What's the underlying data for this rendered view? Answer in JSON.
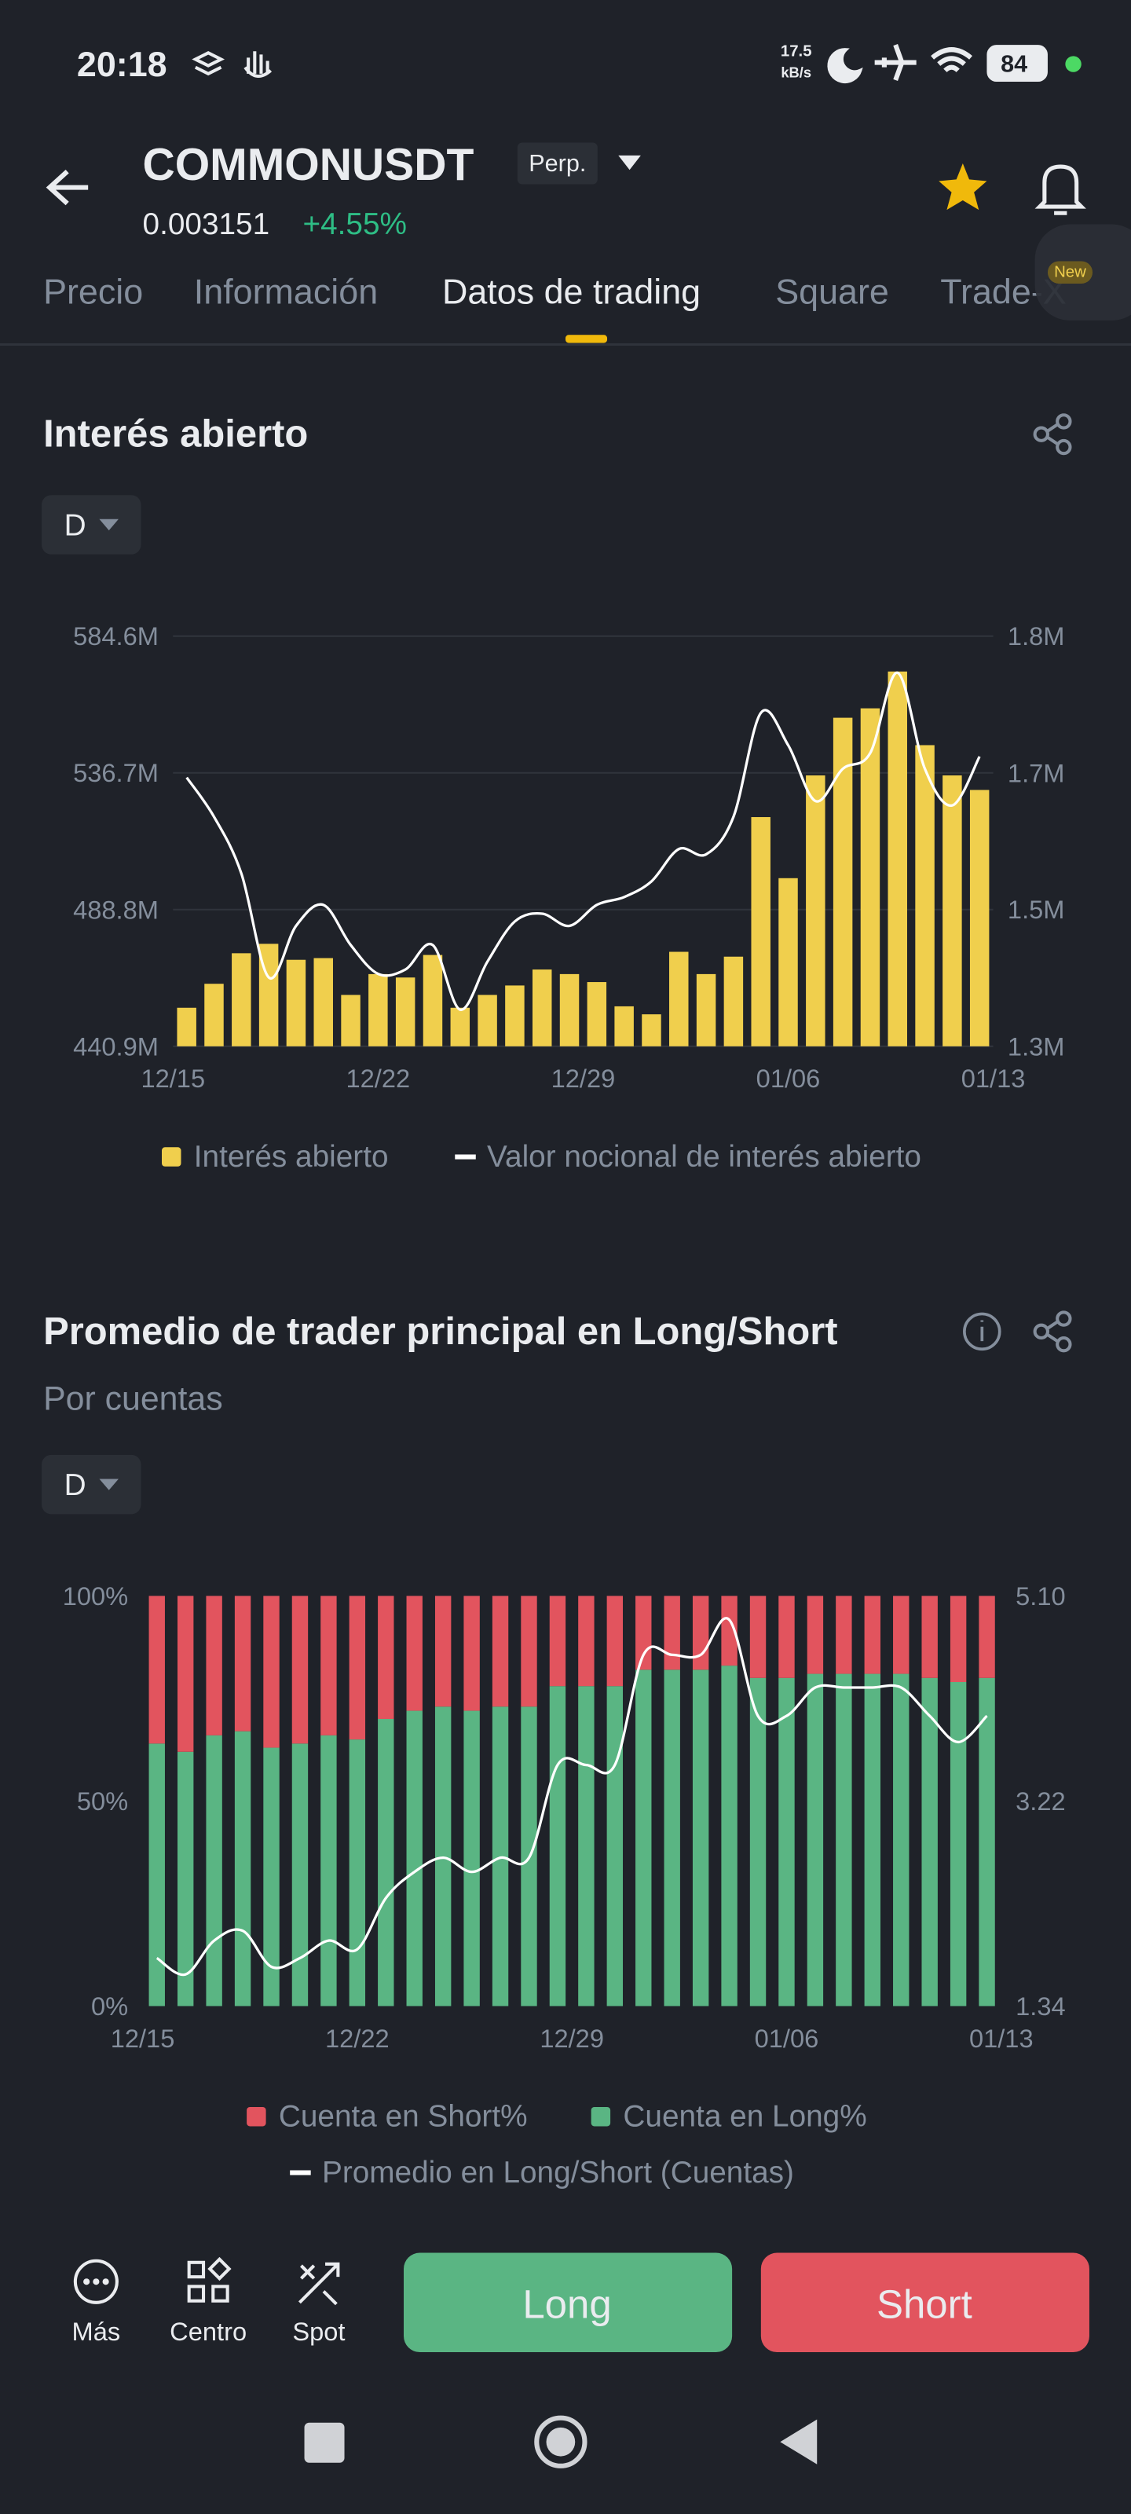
{
  "status_bar": {
    "time": "20:18",
    "network_speed": "17.5",
    "network_unit": "kB/s",
    "battery": "84"
  },
  "header": {
    "symbol": "COMMONUSDT",
    "contract_type": "Perp.",
    "price": "0.003151",
    "change": "+4.55%"
  },
  "tabs": [
    "Precio",
    "Información",
    "Datos de trading",
    "Square",
    "Trade-X"
  ],
  "tab_badge": "New",
  "chart_data": [
    {
      "type": "bar_line",
      "title": "Interés abierto",
      "interval": "D",
      "categories": [
        "12/15",
        null,
        null,
        null,
        null,
        null,
        null,
        "12/22",
        null,
        null,
        null,
        null,
        null,
        null,
        "12/29",
        null,
        null,
        null,
        null,
        null,
        null,
        null,
        "01/06",
        null,
        null,
        null,
        null,
        null,
        null,
        "01/13"
      ],
      "series": [
        {
          "name": "Interés abierto",
          "color": "#f0cf4d",
          "values": [
            454.4,
            462.8,
            473.5,
            476.8,
            471.2,
            471.8,
            458.9,
            466.2,
            465.0,
            472.9,
            454.4,
            458.9,
            462.2,
            467.8,
            466.2,
            463.4,
            454.9,
            452.1,
            474.0,
            466.2,
            472.3,
            521.2,
            499.8,
            535.8,
            556.0,
            559.3,
            572.2,
            546.4,
            535.8,
            530.7
          ]
        },
        {
          "name": "Valor nocional de interés abierto",
          "color": "#ffffff",
          "axis": "y2",
          "values": [
            1.648,
            1.603,
            1.538,
            1.419,
            1.478,
            1.502,
            1.456,
            1.423,
            1.428,
            1.456,
            1.382,
            1.437,
            1.483,
            1.492,
            1.478,
            1.502,
            1.511,
            1.529,
            1.566,
            1.56,
            1.603,
            1.722,
            1.685,
            1.621,
            1.658,
            1.676,
            1.768,
            1.658,
            1.616,
            1.672
          ]
        }
      ],
      "ylim": [
        440.9,
        584.6
      ],
      "yticks": [
        {
          "value": 440.9,
          "label": "440.9M"
        },
        {
          "value": 488.8,
          "label": "488.8M"
        },
        {
          "value": 536.7,
          "label": "536.7M"
        },
        {
          "value": 584.6,
          "label": "584.6M"
        }
      ],
      "y2lim": [
        1.34,
        1.81
      ],
      "y2ticks": [
        {
          "value": 1.34,
          "label": "1.3M"
        },
        {
          "value": 1.497,
          "label": "1.5M"
        },
        {
          "value": 1.653,
          "label": "1.7M"
        },
        {
          "value": 1.81,
          "label": "1.8M"
        }
      ],
      "grid": true
    },
    {
      "type": "stacked_bar_line",
      "title": "Promedio de trader principal en Long/Short",
      "subtitle": "Por cuentas",
      "interval": "D",
      "categories": [
        "12/15",
        null,
        null,
        null,
        null,
        null,
        null,
        "12/22",
        null,
        null,
        null,
        null,
        null,
        null,
        "12/29",
        null,
        null,
        null,
        null,
        null,
        null,
        null,
        "01/06",
        null,
        null,
        null,
        null,
        null,
        null,
        "01/13"
      ],
      "series": [
        {
          "name": "Cuenta en Short%",
          "color": "#e2545e",
          "values": [
            36,
            38,
            34,
            33,
            37,
            36,
            34,
            35,
            30,
            28,
            27,
            28,
            27,
            27,
            22,
            22,
            22,
            18,
            18,
            18,
            17,
            20,
            20,
            19,
            19,
            19,
            19,
            20,
            21,
            20
          ]
        },
        {
          "name": "Cuenta en Long%",
          "color": "#5ab583",
          "values": [
            64,
            62,
            66,
            67,
            63,
            64,
            66,
            65,
            70,
            72,
            73,
            72,
            73,
            73,
            78,
            78,
            78,
            82,
            82,
            82,
            83,
            80,
            80,
            81,
            81,
            81,
            81,
            80,
            79,
            80
          ]
        },
        {
          "name": "Promedio en Long/Short (Cuentas)",
          "color": "#ffffff",
          "axis": "y2",
          "values": [
            1.78,
            1.63,
            1.94,
            2.03,
            1.7,
            1.78,
            1.94,
            1.86,
            2.33,
            2.57,
            2.7,
            2.57,
            2.7,
            2.7,
            3.55,
            3.55,
            3.55,
            4.56,
            4.56,
            4.56,
            4.88,
            4.0,
            4.0,
            4.26,
            4.26,
            4.26,
            4.26,
            4.0,
            3.76,
            4.0
          ]
        }
      ],
      "ylim": [
        0,
        100
      ],
      "yticks": [
        {
          "value": 0,
          "label": "0%"
        },
        {
          "value": 50,
          "label": "50%"
        },
        {
          "value": 100,
          "label": "100%"
        }
      ],
      "y2lim": [
        1.34,
        5.1
      ],
      "y2ticks": [
        1.34,
        3.22,
        {
          "value": 5.1,
          "label": "5.10"
        }
      ],
      "grid": false
    }
  ],
  "bottom_nav": {
    "items": [
      "Más",
      "Centro",
      "Spot"
    ],
    "long_button": "Long",
    "short_button": "Short"
  }
}
